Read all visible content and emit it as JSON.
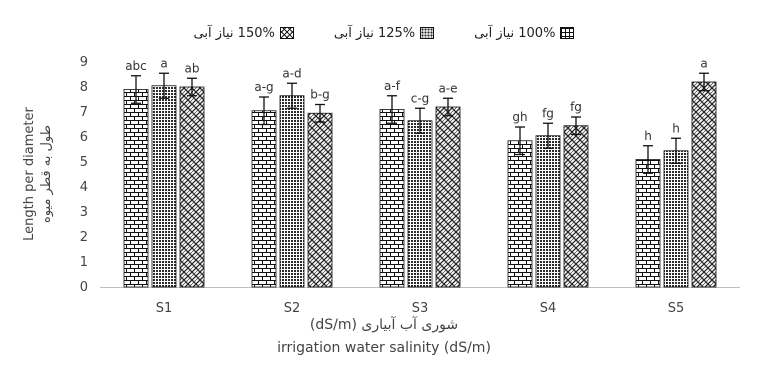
{
  "chart_data": {
    "type": "bar",
    "categories": [
      "S1",
      "S2",
      "S3",
      "S4",
      "S5"
    ],
    "series": [
      {
        "name": "100% نیاز آبی",
        "pattern": "brick",
        "values": [
          7.9,
          7.05,
          7.1,
          5.85,
          5.1
        ],
        "errors": [
          0.55,
          0.55,
          0.55,
          0.55,
          0.55
        ],
        "letters": [
          "abc",
          "a-g",
          "a-f",
          "gh",
          "h"
        ]
      },
      {
        "name": "125% نیاز آبی",
        "pattern": "dots",
        "values": [
          8.05,
          7.65,
          6.65,
          6.05,
          5.45
        ],
        "errors": [
          0.5,
          0.5,
          0.5,
          0.5,
          0.5
        ],
        "letters": [
          "a",
          "a-d",
          "c-g",
          "fg",
          "h"
        ]
      },
      {
        "name": "150% نیاز آبی",
        "pattern": "weave",
        "values": [
          8.0,
          6.95,
          7.2,
          6.45,
          8.2
        ],
        "errors": [
          0.35,
          0.35,
          0.35,
          0.35,
          0.35
        ],
        "letters": [
          "ab",
          "b-g",
          "a-e",
          "fg",
          "a"
        ]
      }
    ],
    "ylim": [
      0,
      9
    ],
    "yticks": [
      0,
      1,
      2,
      3,
      4,
      5,
      6,
      7,
      8,
      9
    ],
    "ylabel_en": "Length per diameter",
    "ylabel_fa": "طول به قطر میوه",
    "xlabel_fa": "شوری آب آبیاری (dS/m)",
    "xlabel_en": "irrigation water salinity (dS/m)",
    "legend_position": "top",
    "grid": false
  }
}
